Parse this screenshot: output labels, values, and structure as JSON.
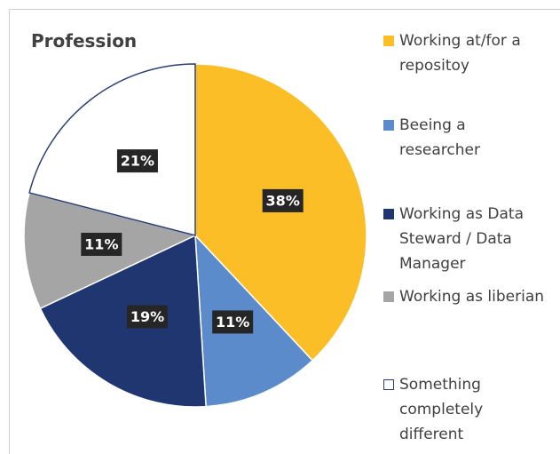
{
  "chart_data": {
    "type": "pie",
    "title": "Profession",
    "categories": [
      "Working at/for a repositoy",
      "Beeing a researcher",
      "Working as Data Steward / Data Manager",
      "Working as liberian",
      "Something completely different"
    ],
    "values": [
      38,
      11,
      19,
      11,
      21
    ],
    "value_labels": [
      "38%",
      "11%",
      "19%",
      "11%",
      "21%"
    ],
    "colors": [
      "#fbbe26",
      "#5b8bcb",
      "#1f3670",
      "#a5a5a5",
      "#ffffff"
    ],
    "legend": "right"
  }
}
